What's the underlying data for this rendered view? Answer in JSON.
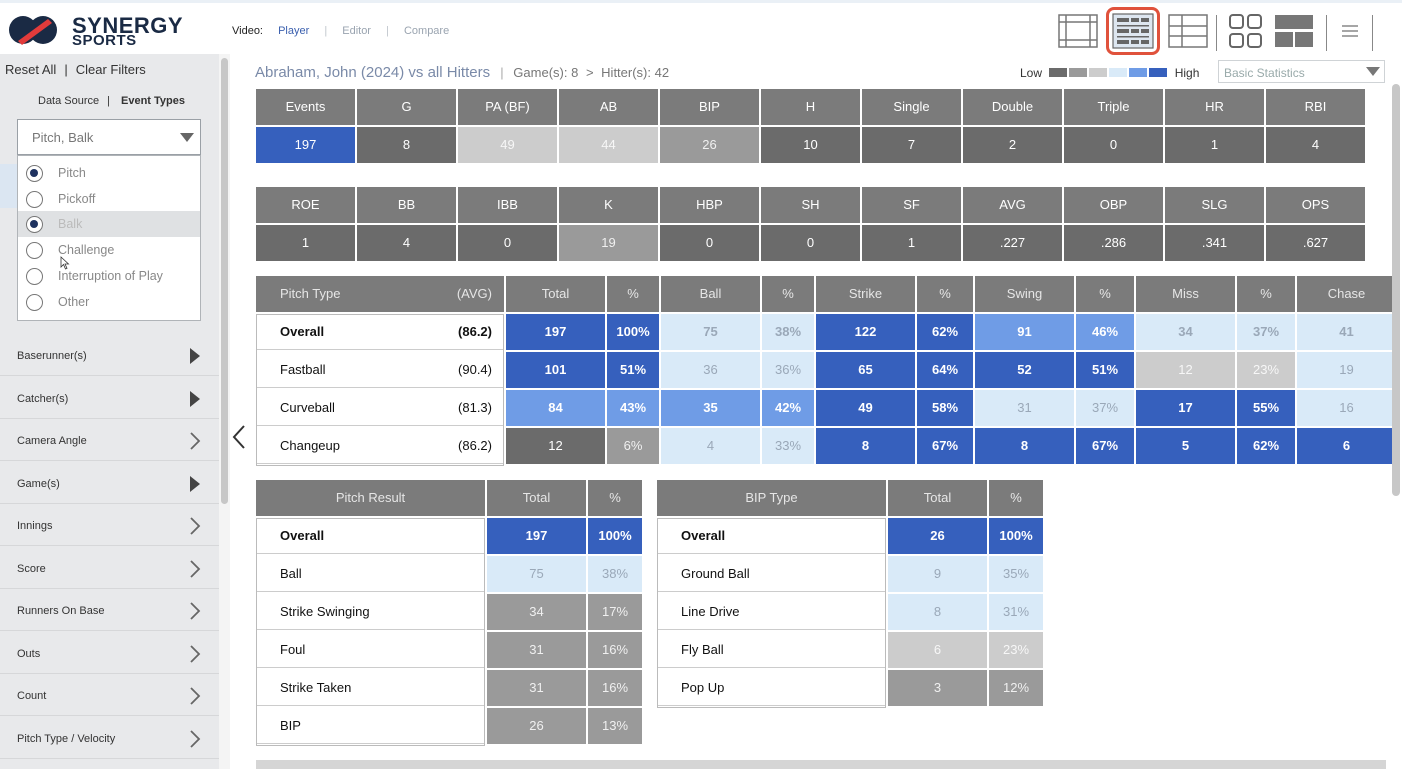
{
  "header": {
    "logo_line1": "SYNERGY",
    "logo_line2": "SPORTS",
    "video_label": "Video:",
    "video_links": [
      "Player",
      "Editor",
      "Compare"
    ],
    "view_icons": [
      "grid-view-icon",
      "stats-grid-view-icon",
      "list-view-icon",
      "tiles-view-icon",
      "panels-view-icon",
      "menu-icon"
    ]
  },
  "sidebar": {
    "reset_all": "Reset All",
    "clear_filters": "Clear Filters",
    "tab_data_source": "Data Source",
    "tab_event_types": "Event Types",
    "event_select_value": "Pitch, Balk",
    "event_options": [
      {
        "label": "Pitch",
        "checked": true
      },
      {
        "label": "Pickoff",
        "checked": false
      },
      {
        "label": "Balk",
        "checked": true
      },
      {
        "label": "Challenge",
        "checked": false
      },
      {
        "label": "Interruption of Play",
        "checked": false
      },
      {
        "label": "Other",
        "checked": false
      }
    ],
    "filters": [
      "Baserunner(s)",
      "Catcher(s)",
      "Camera Angle",
      "Game(s)",
      "Innings",
      "Score",
      "Runners On Base",
      "Outs",
      "Count",
      "Pitch Type / Velocity"
    ]
  },
  "main": {
    "title": "Abraham, John (2024) vs all Hitters",
    "games_label": "Game(s):",
    "games_value": "8",
    "hitters_label": "Hitter(s):",
    "hitters_value": "42",
    "legend_low": "Low",
    "legend_high": "High",
    "legend_colors": [
      "#6b6b6b",
      "#9a9a9a",
      "#cccccc",
      "#d9eaf8",
      "#6f9ce6",
      "#3660bd"
    ],
    "stat_select": "Basic Statistics"
  },
  "stats_row1": {
    "headers": [
      "Events",
      "G",
      "PA (BF)",
      "AB",
      "BIP",
      "H",
      "Single",
      "Double",
      "Triple",
      "HR",
      "RBI"
    ],
    "values": [
      "197",
      "8",
      "49",
      "44",
      "26",
      "10",
      "7",
      "2",
      "0",
      "1",
      "4"
    ],
    "levels": [
      "high",
      "dark",
      "light",
      "light",
      "mid",
      "dark",
      "dark",
      "dark",
      "dark",
      "dark",
      "dark"
    ]
  },
  "stats_row2": {
    "headers": [
      "ROE",
      "BB",
      "IBB",
      "K",
      "HBP",
      "SH",
      "SF",
      "AVG",
      "OBP",
      "SLG",
      "OPS"
    ],
    "values": [
      "1",
      "4",
      "0",
      "19",
      "0",
      "0",
      "1",
      ".227",
      ".286",
      ".341",
      ".627"
    ],
    "levels": [
      "dark",
      "dark",
      "dark",
      "mid",
      "dark",
      "dark",
      "dark",
      "dark",
      "dark",
      "dark",
      "dark"
    ]
  },
  "pitch_type_table": {
    "headers": [
      "Pitch Type",
      "(AVG)",
      "Total",
      "%",
      "Ball",
      "%",
      "Strike",
      "%",
      "Swing",
      "%",
      "Miss",
      "%",
      "Chase"
    ],
    "rows": [
      {
        "name": "Overall",
        "avg": "(86.2)",
        "values": [
          "197",
          "100%",
          "75",
          "38%",
          "122",
          "62%",
          "91",
          "46%",
          "34",
          "37%",
          "41"
        ],
        "levels": [
          "high",
          "high",
          "pale",
          "pale",
          "high",
          "high",
          "med",
          "med",
          "pale",
          "pale",
          "pale"
        ]
      },
      {
        "name": "Fastball",
        "avg": "(90.4)",
        "values": [
          "101",
          "51%",
          "36",
          "36%",
          "65",
          "64%",
          "52",
          "51%",
          "12",
          "23%",
          "19"
        ],
        "levels": [
          "high",
          "high",
          "pale",
          "pale",
          "high",
          "high",
          "high",
          "high",
          "light",
          "light",
          "pale"
        ]
      },
      {
        "name": "Curveball",
        "avg": "(81.3)",
        "values": [
          "84",
          "43%",
          "35",
          "42%",
          "49",
          "58%",
          "31",
          "37%",
          "17",
          "55%",
          "16"
        ],
        "levels": [
          "med",
          "med",
          "med",
          "med",
          "high",
          "high",
          "pale",
          "pale",
          "high",
          "high",
          "pale"
        ]
      },
      {
        "name": "Changeup",
        "avg": "(86.2)",
        "values": [
          "12",
          "6%",
          "4",
          "33%",
          "8",
          "67%",
          "8",
          "67%",
          "5",
          "62%",
          "6"
        ],
        "levels": [
          "dark",
          "mid",
          "pale",
          "pale",
          "high",
          "high",
          "high",
          "high",
          "high",
          "high",
          "high"
        ]
      }
    ]
  },
  "pitch_result_table": {
    "headers": [
      "Pitch Result",
      "Total",
      "%"
    ],
    "rows": [
      {
        "name": "Overall",
        "values": [
          "197",
          "100%"
        ],
        "levels": [
          "high",
          "high"
        ]
      },
      {
        "name": "Ball",
        "values": [
          "75",
          "38%"
        ],
        "levels": [
          "pale",
          "pale"
        ]
      },
      {
        "name": "Strike Swinging",
        "values": [
          "34",
          "17%"
        ],
        "levels": [
          "mid",
          "mid"
        ]
      },
      {
        "name": "Foul",
        "values": [
          "31",
          "16%"
        ],
        "levels": [
          "mid",
          "mid"
        ]
      },
      {
        "name": "Strike Taken",
        "values": [
          "31",
          "16%"
        ],
        "levels": [
          "mid",
          "mid"
        ]
      },
      {
        "name": "BIP",
        "values": [
          "26",
          "13%"
        ],
        "levels": [
          "mid",
          "mid"
        ]
      }
    ]
  },
  "bip_type_table": {
    "headers": [
      "BIP Type",
      "Total",
      "%"
    ],
    "rows": [
      {
        "name": "Overall",
        "values": [
          "26",
          "100%"
        ],
        "levels": [
          "high",
          "high"
        ]
      },
      {
        "name": "Ground Ball",
        "values": [
          "9",
          "35%"
        ],
        "levels": [
          "pale",
          "pale"
        ]
      },
      {
        "name": "Line Drive",
        "values": [
          "8",
          "31%"
        ],
        "levels": [
          "pale",
          "pale"
        ]
      },
      {
        "name": "Fly Ball",
        "values": [
          "6",
          "23%"
        ],
        "levels": [
          "light",
          "light"
        ]
      },
      {
        "name": "Pop Up",
        "values": [
          "3",
          "12%"
        ],
        "levels": [
          "mid",
          "mid"
        ]
      }
    ]
  }
}
